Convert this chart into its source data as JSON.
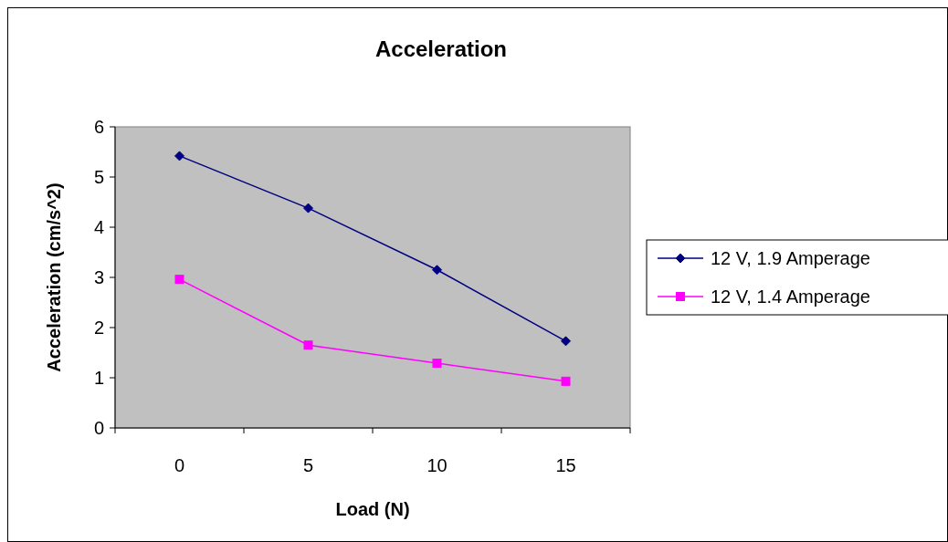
{
  "chart_data": {
    "type": "line",
    "title": "Acceleration",
    "xlabel": "Load (N)",
    "ylabel": "Acceleration (cm/s^2)",
    "categories": [
      "0",
      "5",
      "10",
      "15"
    ],
    "series": [
      {
        "name": "12 V, 1.9 Amperage",
        "color": "#000080",
        "values": [
          5.42,
          4.38,
          3.15,
          1.73
        ],
        "marker": "diamond"
      },
      {
        "name": "12 V, 1.4 Amperage",
        "color": "#ff00ff",
        "values": [
          2.96,
          1.65,
          1.29,
          0.93
        ],
        "marker": "square"
      }
    ],
    "ylim": [
      0,
      6
    ],
    "yticks": [
      0,
      1,
      2,
      3,
      4,
      5,
      6
    ],
    "grid": false,
    "legend": "right",
    "line_style": "solid"
  }
}
